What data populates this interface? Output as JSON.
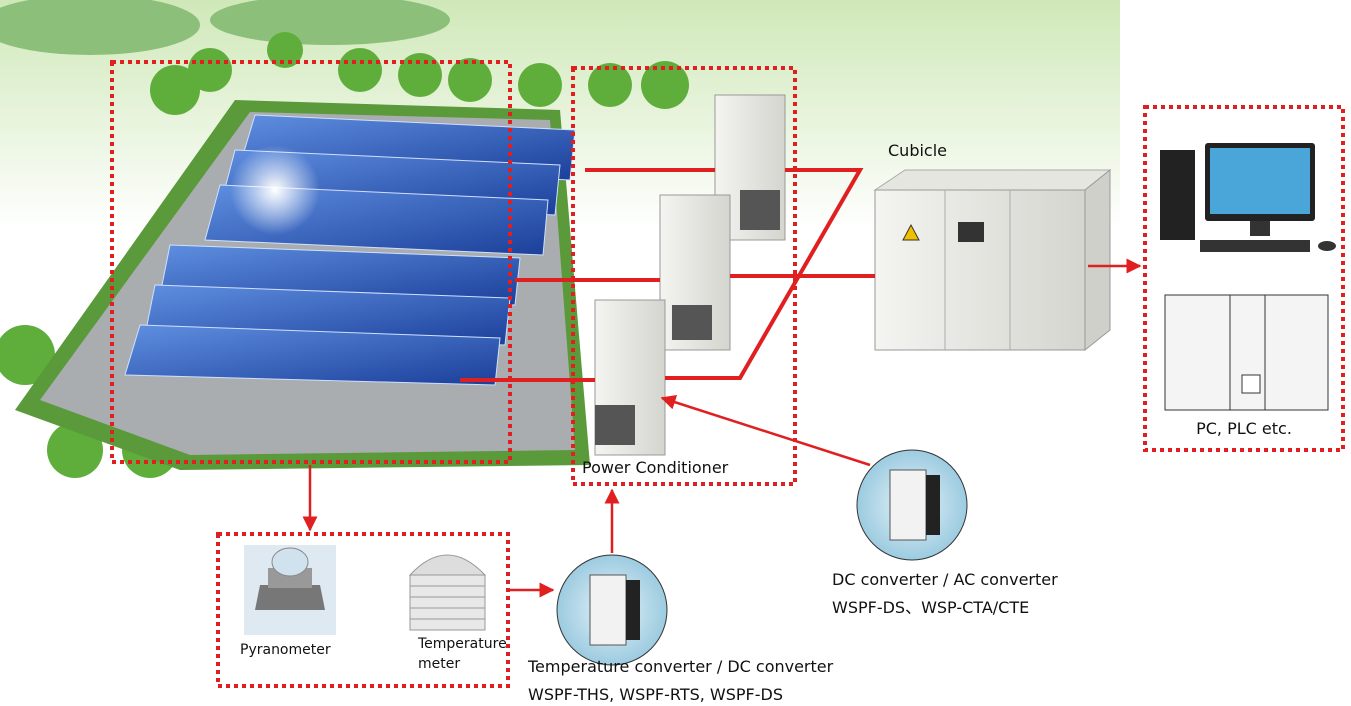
{
  "labels": {
    "cubicle": "Cubicle",
    "pc_plc": "PC, PLC etc.",
    "power_conditioner": "Power Conditioner",
    "pyranometer": "Pyranometer",
    "temperature_meter": [
      "Temperature",
      "meter"
    ],
    "temp_converter": {
      "title": "Temperature converter / DC converter",
      "models": "WSPF-THS, WSPF-RTS, WSPF-DS"
    },
    "dc_ac_converter": {
      "title": "DC converter / AC converter",
      "models": "WSPF-DS、WSP-CTA/CTE"
    }
  }
}
